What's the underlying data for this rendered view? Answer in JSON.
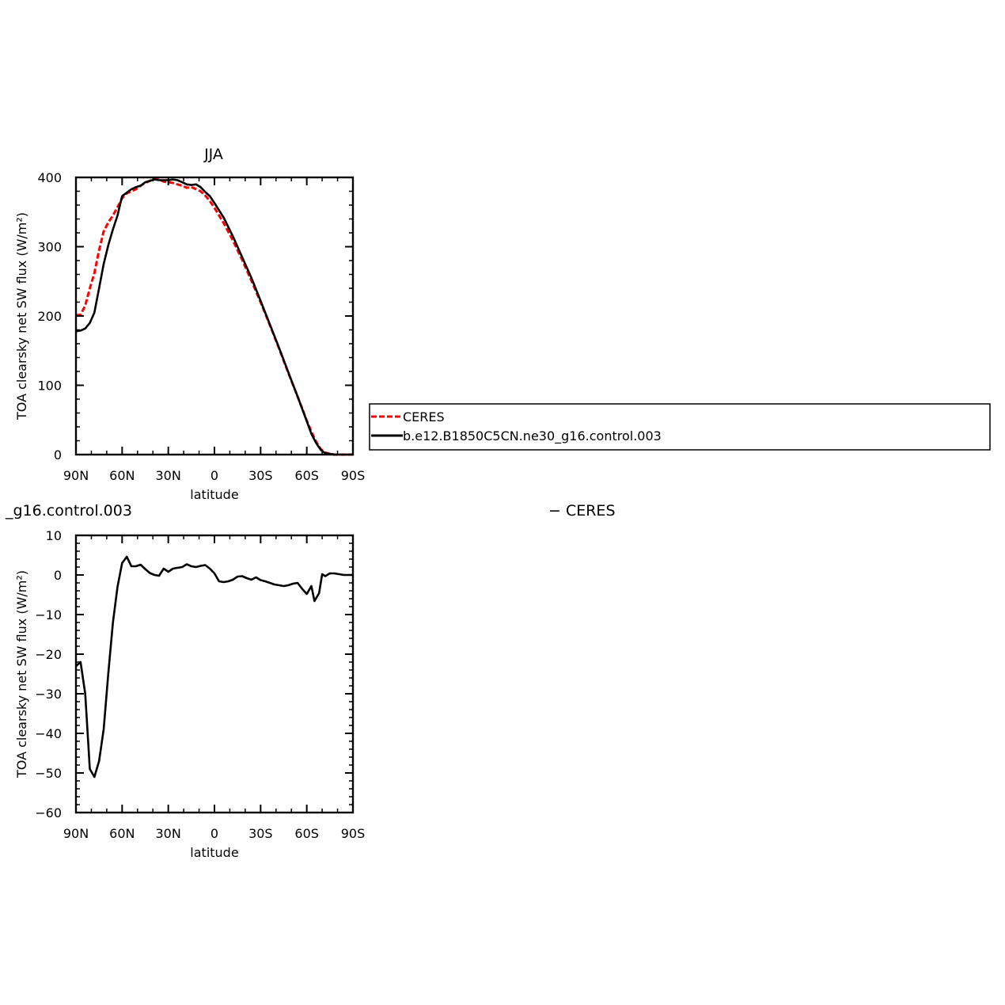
{
  "chart_data": [
    {
      "type": "line",
      "title": "JJA",
      "xlabel": "latitude",
      "ylabel": "TOA clearsky net SW flux (W/m²)",
      "xlim": [
        90,
        -90
      ],
      "ylim": [
        0,
        400
      ],
      "xticks": [
        90,
        60,
        30,
        0,
        -30,
        -60,
        -90
      ],
      "xtick_labels": [
        "90N",
        "60N",
        "30N",
        "0",
        "30S",
        "60S",
        "90S"
      ],
      "yticks": [
        0,
        100,
        200,
        300,
        400
      ],
      "ytick_labels": [
        "0",
        "100",
        "200",
        "300",
        "400"
      ],
      "legend_position": "right",
      "series": [
        {
          "name": "CERES",
          "color": "#ff0000",
          "style": "dashed",
          "x": [
            90,
            87,
            84,
            81,
            78,
            75,
            72,
            69,
            66,
            63,
            60,
            57,
            54,
            51,
            48,
            45,
            42,
            39,
            36,
            33,
            30,
            27,
            24,
            21,
            18,
            15,
            12,
            9,
            6,
            3,
            0,
            -6,
            -12,
            -18,
            -24,
            -30,
            -36,
            -42,
            -48,
            -54,
            -60,
            -63,
            -66,
            -69,
            -72,
            -75,
            -78,
            -81,
            -84,
            -87,
            -90
          ],
          "y": [
            201,
            202,
            215,
            240,
            262,
            295,
            322,
            335,
            345,
            357,
            370,
            377,
            380,
            383,
            388,
            392,
            395,
            398,
            397,
            394,
            393,
            392,
            390,
            388,
            385,
            386,
            383,
            380,
            374,
            366,
            356,
            334,
            309,
            281,
            251,
            220,
            187,
            153,
            118,
            84,
            49,
            33,
            19,
            8,
            3,
            1,
            0,
            0,
            0,
            0,
            0
          ]
        },
        {
          "name": "b.e12.B1850C5CN.ne30_g16.control.003",
          "color": "#000000",
          "style": "solid",
          "x": [
            90,
            87,
            84,
            81,
            78,
            75,
            72,
            69,
            66,
            63,
            60,
            57,
            54,
            51,
            48,
            45,
            42,
            39,
            36,
            33,
            30,
            27,
            24,
            21,
            18,
            15,
            12,
            9,
            6,
            3,
            0,
            -6,
            -12,
            -18,
            -24,
            -30,
            -36,
            -42,
            -48,
            -54,
            -60,
            -63,
            -66,
            -69,
            -72,
            -75,
            -78,
            -81,
            -84,
            -87,
            -90
          ],
          "y": [
            178,
            179,
            182,
            190,
            205,
            240,
            275,
            302,
            325,
            345,
            373,
            378,
            383,
            386,
            388,
            393,
            395,
            397,
            396,
            396,
            396,
            397,
            396,
            393,
            390,
            389,
            390,
            386,
            379,
            373,
            363,
            342,
            315,
            285,
            255,
            222,
            188,
            154,
            119,
            84,
            48,
            30,
            17,
            7,
            2,
            1,
            0,
            0,
            0,
            0,
            0
          ]
        }
      ],
      "legend_entries": [
        "CERES",
        "b.e12.B1850C5CN.ne30_g16.control.003"
      ]
    },
    {
      "type": "line",
      "title": "_g16.control.003",
      "title_right": "− CERES",
      "xlabel": "latitude",
      "ylabel": "TOA clearsky net SW flux (W/m²)",
      "xlim": [
        90,
        -90
      ],
      "ylim": [
        -60,
        10
      ],
      "xticks": [
        90,
        60,
        30,
        0,
        -30,
        -60,
        -90
      ],
      "xtick_labels": [
        "90N",
        "60N",
        "30N",
        "0",
        "30S",
        "60S",
        "90S"
      ],
      "yticks": [
        -60,
        -50,
        -40,
        -30,
        -20,
        -10,
        0,
        10
      ],
      "ytick_labels": [
        "−60",
        "−50",
        "−40",
        "−30",
        "−20",
        "−10",
        "0",
        "10"
      ],
      "series": [
        {
          "color": "#000000",
          "style": "solid",
          "x": [
            90,
            87,
            84,
            81,
            78,
            75,
            72,
            69,
            66,
            63,
            60,
            57,
            54,
            51,
            48,
            45,
            42,
            39,
            36,
            33,
            30,
            27,
            24,
            21,
            18,
            15,
            12,
            9,
            6,
            3,
            0,
            -3,
            -6,
            -9,
            -12,
            -15,
            -18,
            -21,
            -24,
            -27,
            -30,
            -33,
            -36,
            -39,
            -42,
            -45,
            -48,
            -51,
            -54,
            -57,
            -60,
            -63,
            -65,
            -68,
            -70,
            -72,
            -75,
            -78,
            -81,
            -84,
            -87,
            -90
          ],
          "y": [
            -23,
            -22,
            -30,
            -49,
            -51,
            -47,
            -39,
            -25,
            -12,
            -3,
            3,
            4.6,
            2.2,
            2.2,
            2.6,
            1.5,
            0.5,
            0,
            -0.2,
            1.6,
            0.8,
            1.6,
            1.8,
            2.0,
            2.7,
            2.2,
            2.0,
            2.3,
            2.5,
            1.6,
            0.4,
            -1.6,
            -1.8,
            -1.6,
            -1.2,
            -0.4,
            -0.3,
            -0.8,
            -1.2,
            -0.6,
            -1.3,
            -1.6,
            -2.0,
            -2.4,
            -2.6,
            -2.8,
            -2.6,
            -2.2,
            -2.0,
            -3.5,
            -4.8,
            -2.8,
            -6.6,
            -4.6,
            0.2,
            -0.3,
            0.4,
            0.4,
            0.2,
            0,
            0,
            0
          ]
        }
      ]
    }
  ]
}
